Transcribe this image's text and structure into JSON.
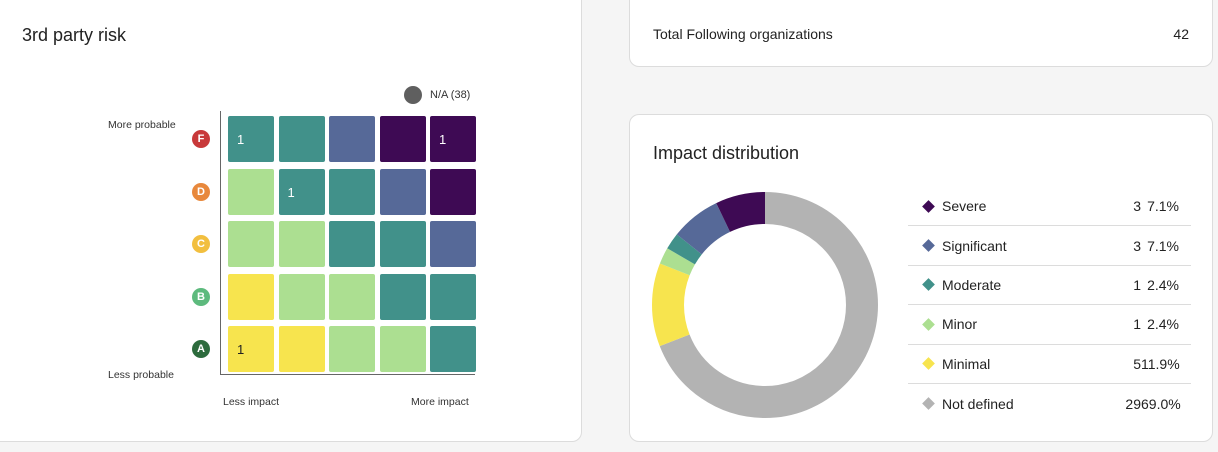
{
  "risk_card": {
    "title": "3rd party risk",
    "na_legend": "N/A (38)",
    "y_top_label": "More probable",
    "y_bottom_label": "Less probable",
    "x_left_label": "Less impact",
    "x_right_label": "More impact",
    "rows": [
      {
        "grade": "F",
        "color": "#c8393a",
        "cells": [
          {
            "color": "#41918a",
            "value": "1"
          },
          {
            "color": "#41918a",
            "value": ""
          },
          {
            "color": "#566998",
            "value": ""
          },
          {
            "color": "#3e0a54",
            "value": ""
          },
          {
            "color": "#3e0a54",
            "value": "1"
          }
        ]
      },
      {
        "grade": "D",
        "color": "#e8883c",
        "cells": [
          {
            "color": "#acdf91",
            "value": ""
          },
          {
            "color": "#41918a",
            "value": "1"
          },
          {
            "color": "#41918a",
            "value": ""
          },
          {
            "color": "#566998",
            "value": ""
          },
          {
            "color": "#3e0a54",
            "value": ""
          }
        ]
      },
      {
        "grade": "C",
        "color": "#f2bf3f",
        "cells": [
          {
            "color": "#acdf91",
            "value": ""
          },
          {
            "color": "#acdf91",
            "value": ""
          },
          {
            "color": "#41918a",
            "value": ""
          },
          {
            "color": "#41918a",
            "value": ""
          },
          {
            "color": "#566998",
            "value": ""
          }
        ]
      },
      {
        "grade": "B",
        "color": "#5dba7d",
        "cells": [
          {
            "color": "#f7e44e",
            "value": ""
          },
          {
            "color": "#acdf91",
            "value": ""
          },
          {
            "color": "#acdf91",
            "value": ""
          },
          {
            "color": "#41918a",
            "value": ""
          },
          {
            "color": "#41918a",
            "value": ""
          }
        ]
      },
      {
        "grade": "A",
        "color": "#2d6b3d",
        "cells": [
          {
            "color": "#f7e44e",
            "value": "1"
          },
          {
            "color": "#f7e44e",
            "value": ""
          },
          {
            "color": "#acdf91",
            "value": ""
          },
          {
            "color": "#acdf91",
            "value": ""
          },
          {
            "color": "#41918a",
            "value": ""
          }
        ]
      }
    ]
  },
  "following": {
    "label": "Total Following organizations",
    "count": "42"
  },
  "impact": {
    "title": "Impact distribution",
    "items": [
      {
        "label": "Severe",
        "count": "3",
        "pct": "7.1%",
        "value": 3,
        "color": "#3e0a54"
      },
      {
        "label": "Significant",
        "count": "3",
        "pct": "7.1%",
        "value": 3,
        "color": "#566998"
      },
      {
        "label": "Moderate",
        "count": "1",
        "pct": "2.4%",
        "value": 1,
        "color": "#41918a"
      },
      {
        "label": "Minor",
        "count": "1",
        "pct": "2.4%",
        "value": 1,
        "color": "#acdf91"
      },
      {
        "label": "Minimal",
        "count": "5",
        "pct": "11.9%",
        "value": 5,
        "color": "#f7e44e"
      },
      {
        "label": "Not defined",
        "count": "29",
        "pct": "69.0%",
        "value": 29,
        "color": "#b3b3b3"
      }
    ]
  }
}
